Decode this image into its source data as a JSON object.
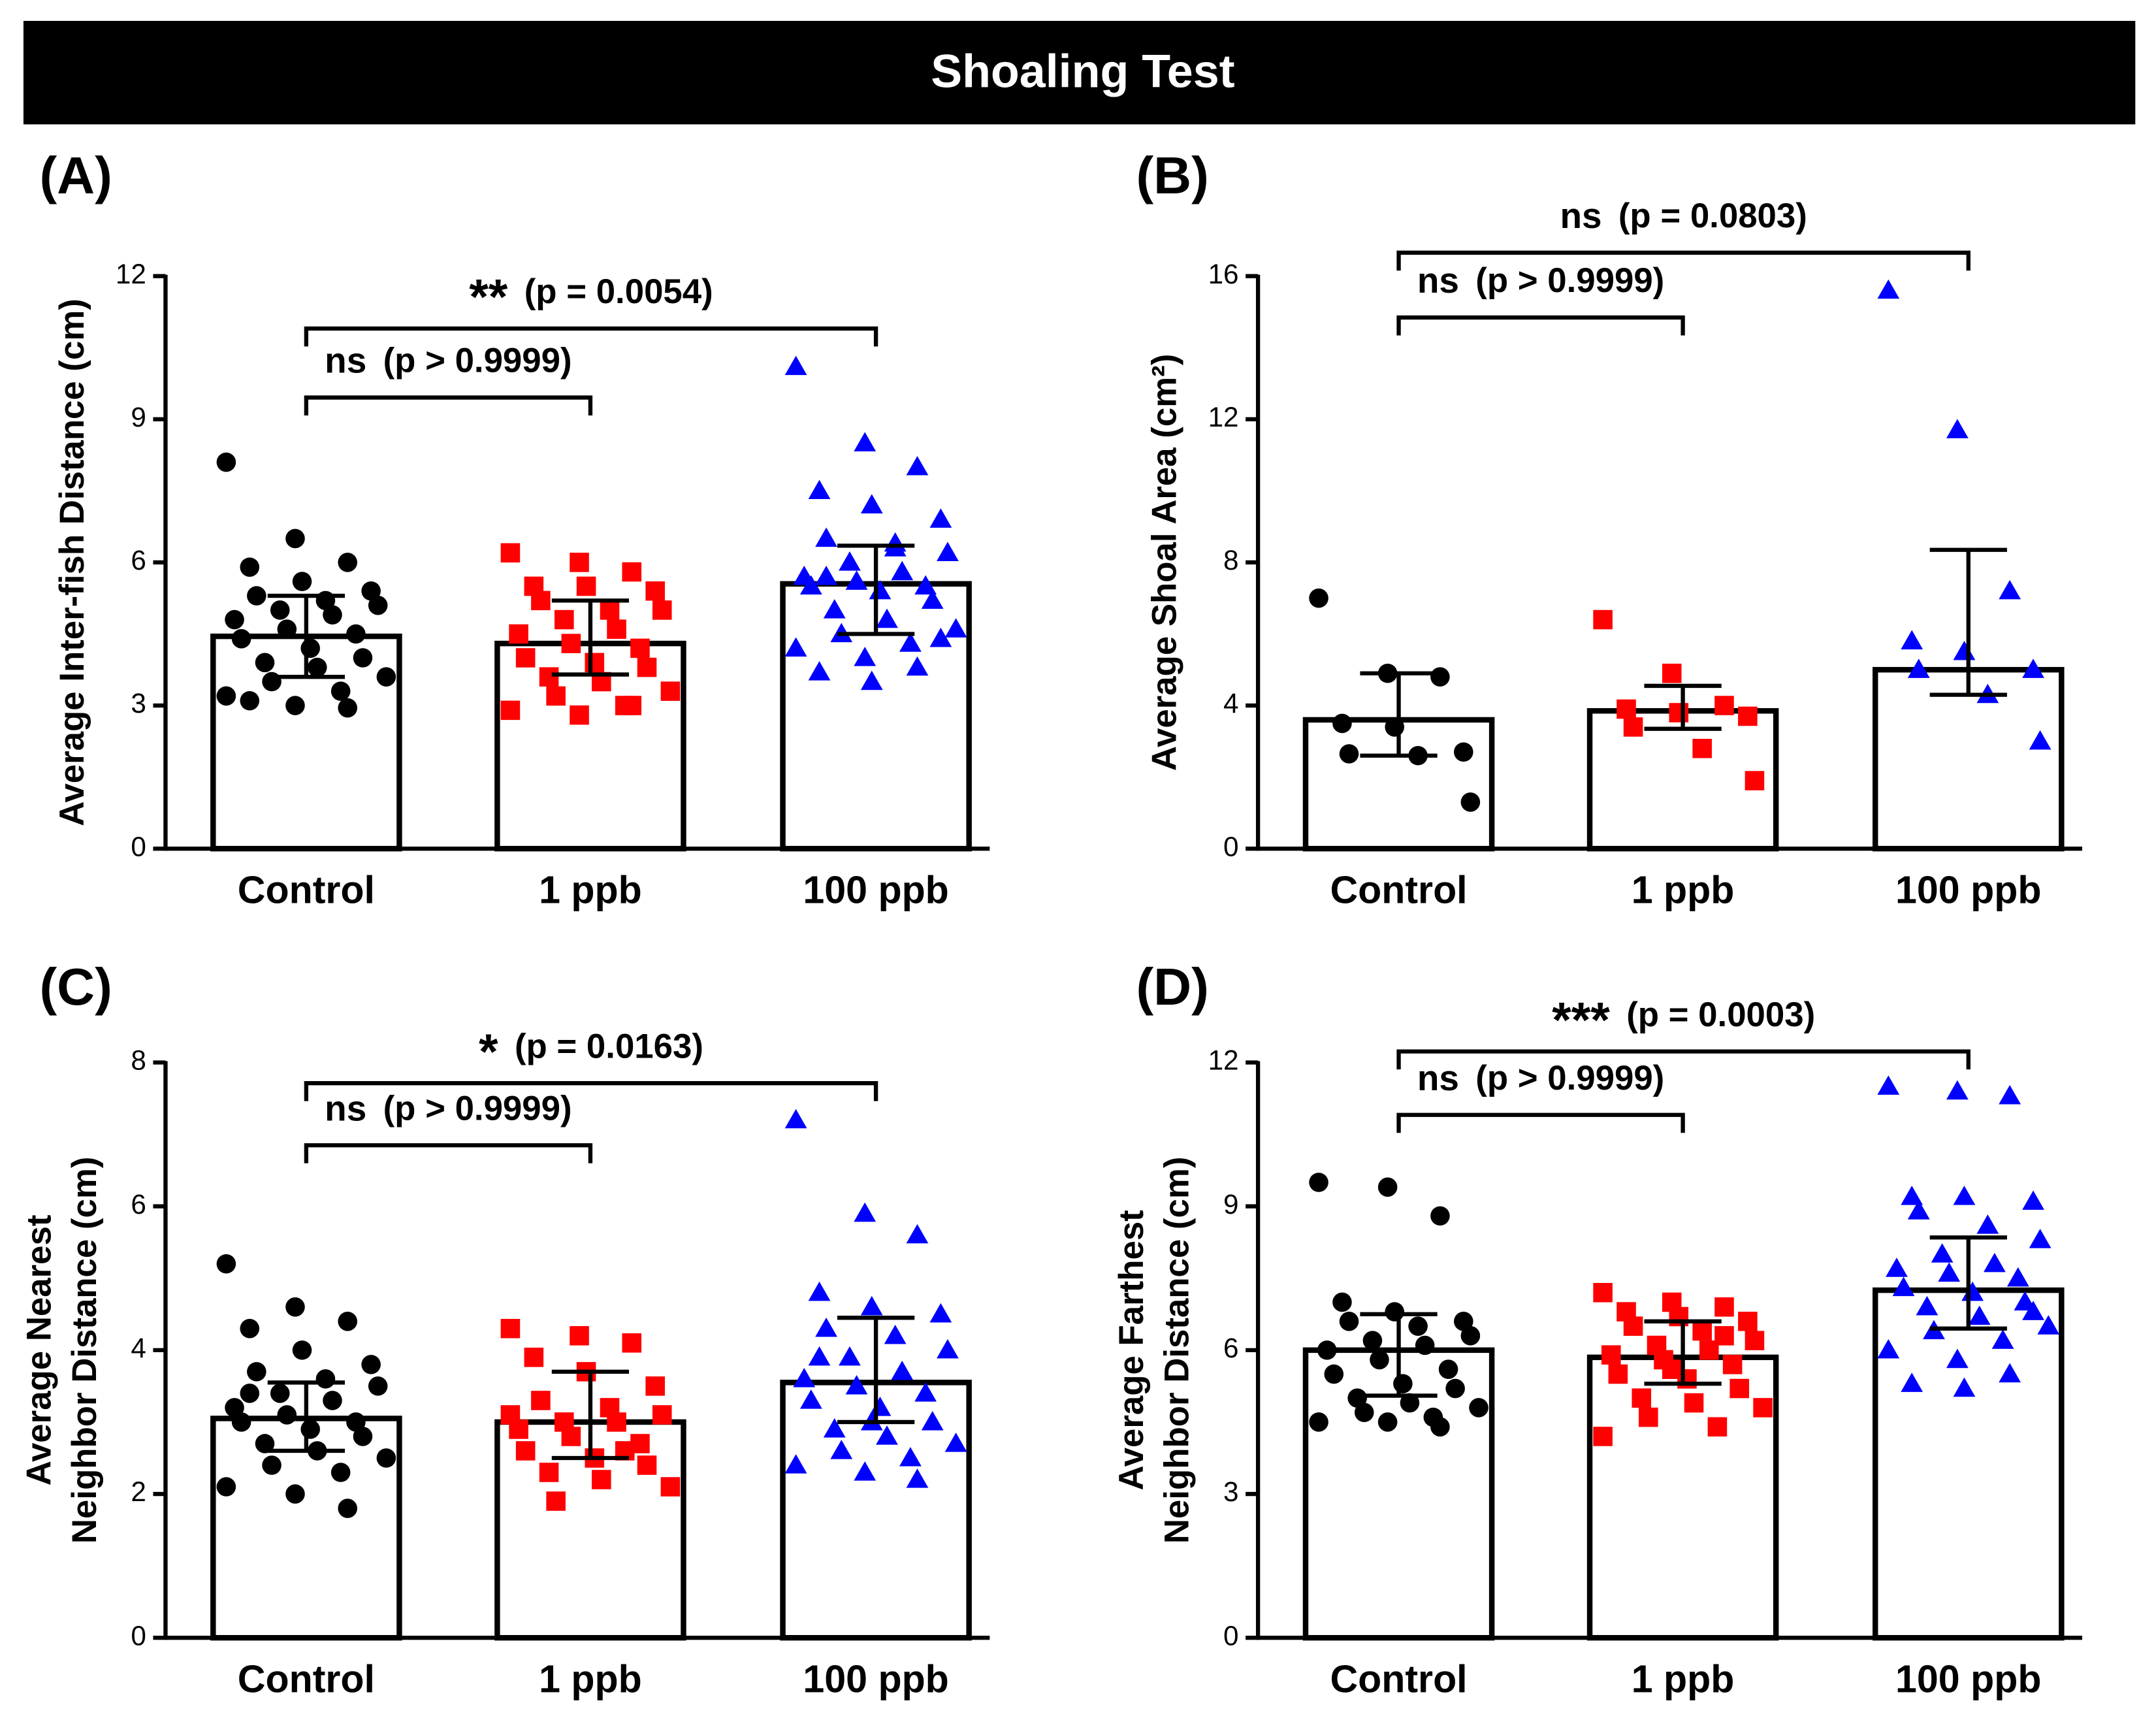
{
  "title": "Shoaling Test",
  "chart_data": [
    {
      "type": "bar",
      "panel": "(A)",
      "ylabel": [
        "Average Inter-fish Distance (cm)"
      ],
      "categories": [
        "Control",
        "1 ppb",
        "100 ppb"
      ],
      "values": [
        4.45,
        4.3,
        5.55
      ],
      "whisker_low": [
        3.6,
        3.65,
        4.5
      ],
      "whisker_high": [
        5.3,
        5.2,
        6.35
      ],
      "colors": [
        "#000000",
        "#ff0000",
        "#0000ff"
      ],
      "markers": [
        "circle",
        "square",
        "triangle"
      ],
      "points": [
        [
          8.1,
          6.5,
          6.0,
          5.9,
          5.6,
          5.4,
          5.3,
          5.2,
          5.1,
          5.0,
          4.9,
          4.8,
          4.6,
          4.5,
          4.4,
          4.2,
          4.0,
          3.9,
          3.8,
          3.6,
          3.5,
          3.3,
          3.2,
          3.0,
          2.95,
          3.1
        ],
        [
          6.2,
          6.0,
          5.8,
          5.5,
          5.5,
          5.4,
          5.2,
          5.0,
          5.0,
          4.8,
          4.6,
          4.5,
          4.3,
          4.2,
          4.0,
          3.9,
          3.8,
          3.6,
          3.5,
          3.3,
          3.2,
          3.0,
          2.9,
          2.8,
          3.0
        ],
        [
          10.1,
          8.5,
          8.0,
          7.5,
          7.2,
          6.9,
          6.5,
          6.4,
          6.2,
          6.0,
          5.8,
          5.7,
          5.6,
          5.5,
          5.5,
          5.4,
          5.2,
          5.0,
          4.8,
          4.6,
          4.5,
          4.3,
          4.2,
          4.0,
          3.8,
          3.7,
          3.5,
          4.4,
          5.7,
          6.3
        ]
      ],
      "ylim": [
        0,
        12
      ],
      "yticks": [
        0,
        3,
        6,
        9,
        12
      ],
      "annotations": [
        {
          "label": "ns",
          "p_text": "(p > 0.9999)",
          "from": 0,
          "to": 1
        },
        {
          "label": "**",
          "p_text": "(p = 0.0054)",
          "from": 0,
          "to": 2
        }
      ]
    },
    {
      "type": "bar",
      "panel": "(B)",
      "ylabel": [
        "Average Shoal Area (cm²)"
      ],
      "categories": [
        "Control",
        "1 ppb",
        "100 ppb"
      ],
      "values": [
        3.6,
        3.85,
        5.0
      ],
      "whisker_low": [
        2.6,
        3.35,
        4.3
      ],
      "whisker_high": [
        4.9,
        4.55,
        8.35
      ],
      "colors": [
        "#000000",
        "#ff0000",
        "#0000ff"
      ],
      "markers": [
        "circle",
        "square",
        "triangle"
      ],
      "points": [
        [
          7.0,
          4.9,
          4.8,
          3.5,
          3.4,
          2.7,
          2.65,
          2.6,
          1.3
        ],
        [
          6.4,
          4.9,
          4.0,
          3.9,
          3.8,
          3.7,
          3.4,
          2.8,
          1.9
        ],
        [
          15.6,
          11.7,
          7.2,
          5.8,
          5.5,
          5.0,
          5.0,
          4.3,
          3.0
        ]
      ],
      "ylim": [
        0,
        16
      ],
      "yticks": [
        0,
        4,
        8,
        12,
        16
      ],
      "annotations": [
        {
          "label": "ns",
          "p_text": "(p > 0.9999)",
          "from": 0,
          "to": 1
        },
        {
          "label": "ns",
          "p_text": "(p = 0.0803)",
          "from": 0,
          "to": 2
        }
      ]
    },
    {
      "type": "bar",
      "panel": "(C)",
      "ylabel": [
        "Average Nearest",
        "Neighbor Distance (cm)"
      ],
      "categories": [
        "Control",
        "1 ppb",
        "100 ppb"
      ],
      "values": [
        3.05,
        3.0,
        3.55
      ],
      "whisker_low": [
        2.6,
        2.5,
        3.0
      ],
      "whisker_high": [
        3.55,
        3.7,
        4.45
      ],
      "colors": [
        "#000000",
        "#ff0000",
        "#0000ff"
      ],
      "markers": [
        "circle",
        "square",
        "triangle"
      ],
      "points": [
        [
          5.2,
          4.6,
          4.4,
          4.3,
          4.0,
          3.8,
          3.7,
          3.6,
          3.5,
          3.4,
          3.3,
          3.2,
          3.1,
          3.0,
          3.0,
          2.9,
          2.8,
          2.7,
          2.6,
          2.5,
          2.4,
          2.3,
          2.1,
          2.0,
          1.8,
          3.4
        ],
        [
          4.3,
          4.2,
          4.1,
          3.9,
          3.7,
          3.5,
          3.3,
          3.2,
          3.1,
          3.0,
          3.0,
          2.9,
          2.8,
          2.7,
          2.6,
          2.5,
          2.4,
          2.3,
          2.2,
          2.1,
          1.9,
          2.6,
          3.1
        ],
        [
          7.2,
          5.9,
          5.6,
          4.8,
          4.6,
          4.5,
          4.3,
          4.2,
          4.0,
          3.9,
          3.7,
          3.6,
          3.5,
          3.4,
          3.3,
          3.2,
          3.0,
          2.9,
          2.8,
          2.7,
          2.6,
          2.5,
          2.4,
          2.3,
          2.2,
          3.9,
          3.0
        ]
      ],
      "ylim": [
        0,
        8
      ],
      "yticks": [
        0,
        2,
        4,
        6,
        8
      ],
      "annotations": [
        {
          "label": "ns",
          "p_text": "(p > 0.9999)",
          "from": 0,
          "to": 1
        },
        {
          "label": "*",
          "p_text": "(p = 0.0163)",
          "from": 0,
          "to": 2
        }
      ]
    },
    {
      "type": "bar",
      "panel": "(D)",
      "ylabel": [
        "Average Farthest",
        "Neighbor Distance (cm)"
      ],
      "categories": [
        "Control",
        "1 ppb",
        "100 ppb"
      ],
      "values": [
        6.0,
        5.85,
        7.25
      ],
      "whisker_low": [
        5.05,
        5.3,
        6.45
      ],
      "whisker_high": [
        6.75,
        6.6,
        8.35
      ],
      "colors": [
        "#000000",
        "#ff0000",
        "#0000ff"
      ],
      "markers": [
        "circle",
        "square",
        "triangle"
      ],
      "points": [
        [
          9.5,
          9.4,
          8.8,
          7.0,
          6.8,
          6.6,
          6.6,
          6.5,
          6.3,
          6.2,
          6.1,
          6.0,
          5.8,
          5.6,
          5.5,
          5.3,
          5.2,
          5.0,
          4.9,
          4.8,
          4.7,
          4.6,
          4.5,
          4.5,
          4.4
        ],
        [
          7.2,
          7.0,
          6.9,
          6.8,
          6.7,
          6.6,
          6.5,
          6.4,
          6.2,
          6.1,
          6.0,
          5.9,
          5.8,
          5.7,
          5.5,
          5.4,
          5.2,
          5.0,
          4.9,
          4.8,
          4.6,
          4.4,
          4.2,
          5.6,
          6.3
        ],
        [
          11.5,
          11.4,
          11.3,
          9.2,
          9.2,
          9.1,
          8.9,
          8.6,
          8.3,
          8.0,
          7.8,
          7.7,
          7.6,
          7.5,
          7.3,
          7.2,
          7.0,
          6.9,
          6.7,
          6.5,
          6.4,
          6.2,
          6.0,
          5.8,
          5.5,
          5.3,
          5.2,
          6.8
        ]
      ],
      "ylim": [
        0,
        12
      ],
      "yticks": [
        0,
        3,
        6,
        9,
        12
      ],
      "annotations": [
        {
          "label": "ns",
          "p_text": "(p > 0.9999)",
          "from": 0,
          "to": 1
        },
        {
          "label": "***",
          "p_text": "(p = 0.0003)",
          "from": 0,
          "to": 2
        }
      ]
    }
  ]
}
